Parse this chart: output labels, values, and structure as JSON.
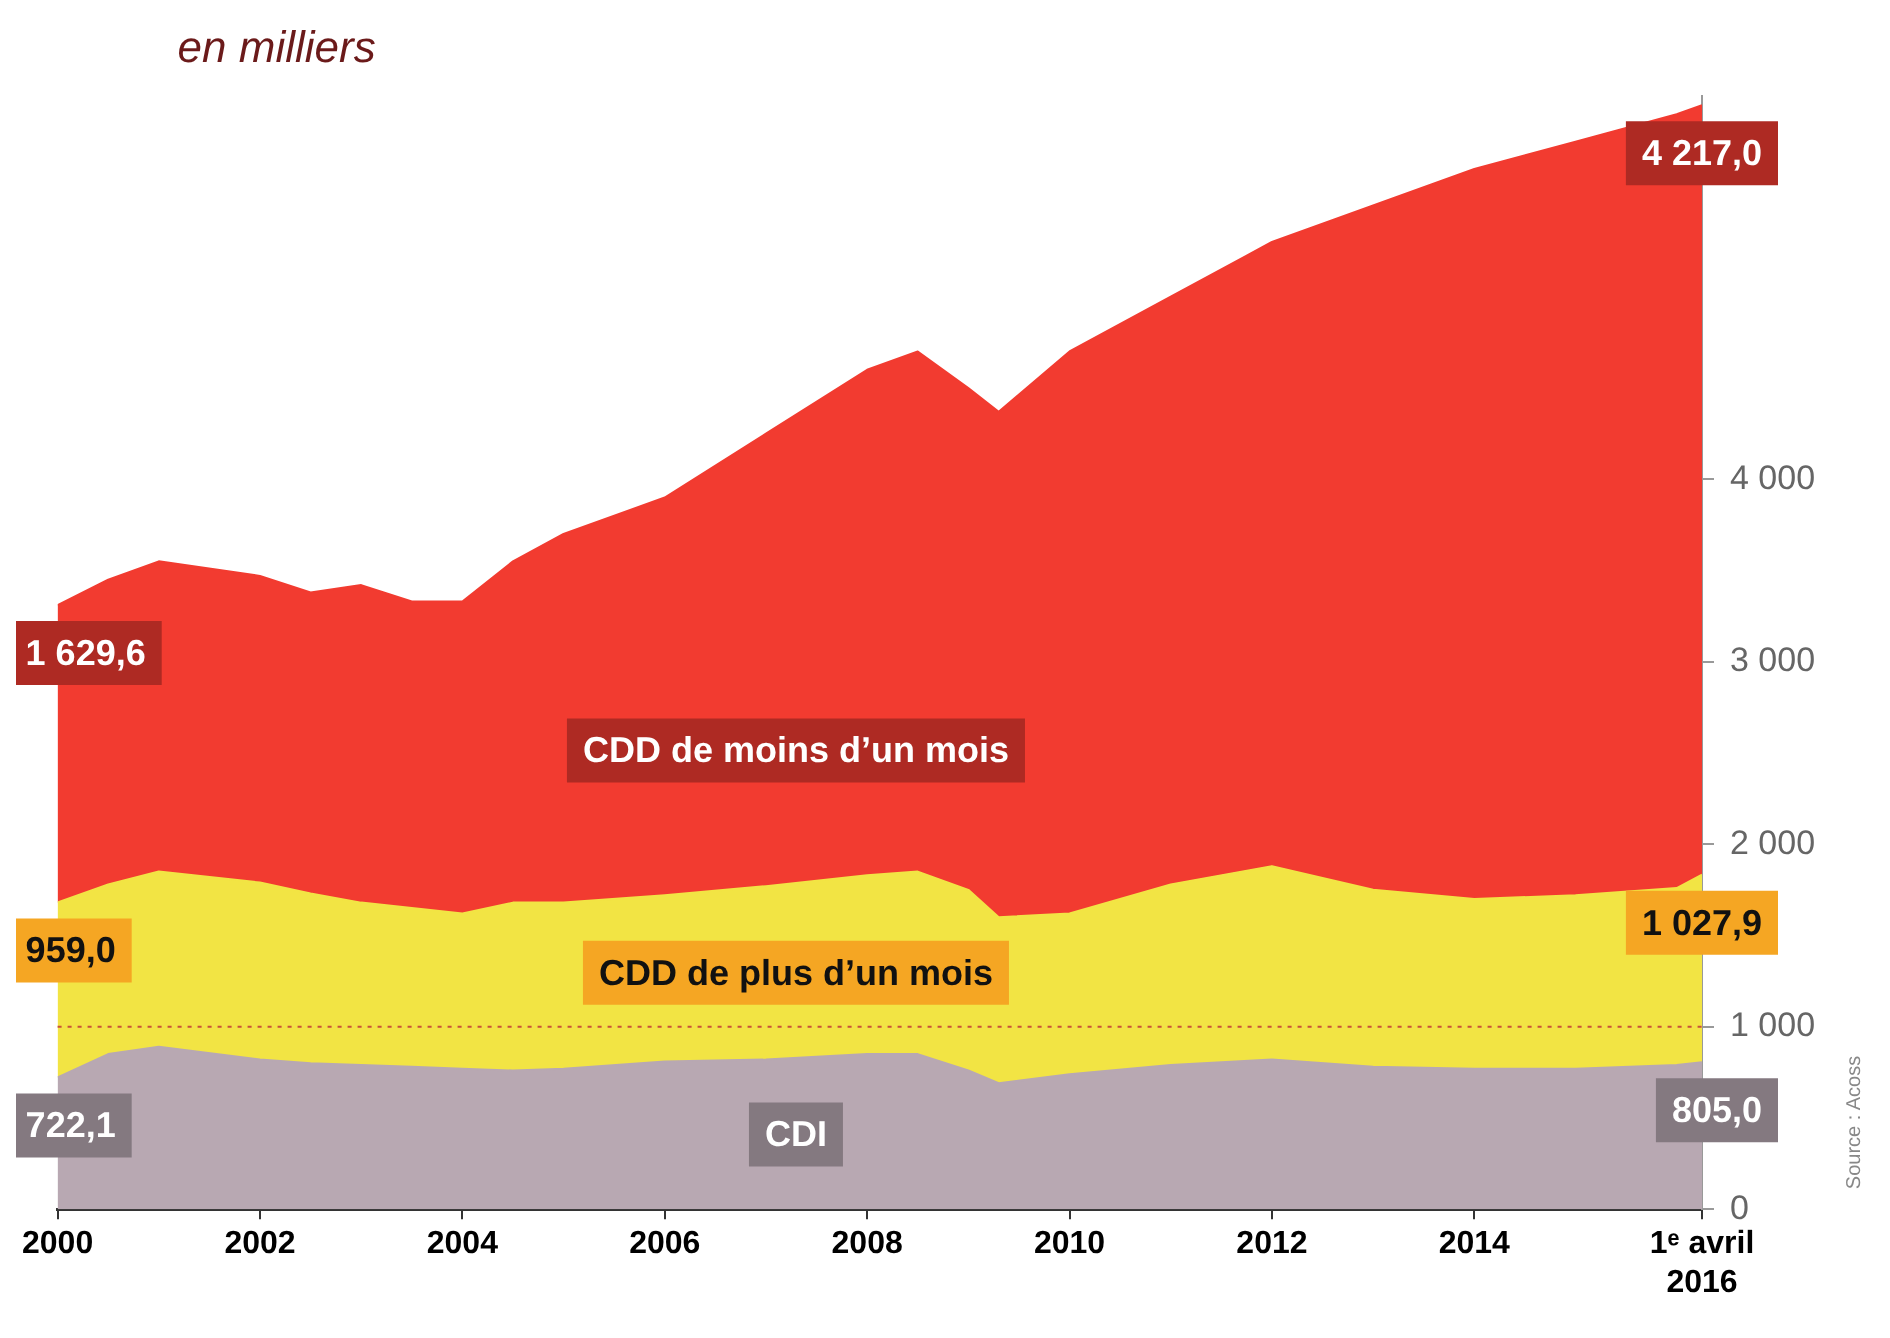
{
  "chart_data": {
    "type": "area",
    "subtitle": "en milliers",
    "stacked": true,
    "grid": false,
    "legend": false,
    "marker": "none",
    "x": [
      2000,
      2000.5,
      2001,
      2002,
      2002.5,
      2003,
      2003.5,
      2004,
      2004.5,
      2005,
      2006,
      2007,
      2008,
      2008.5,
      2009,
      2009.3,
      2010,
      2011,
      2012,
      2013,
      2014,
      2015,
      2016,
      2016.25
    ],
    "series": [
      {
        "name": "CDI",
        "color": "#b8a8b2",
        "values": [
          722.1,
          850,
          890,
          820,
          800,
          790,
          780,
          770,
          760,
          770,
          810,
          820,
          850,
          850,
          760,
          690,
          740,
          790,
          820,
          780,
          770,
          770,
          790,
          805.0
        ],
        "value_labels": [
          "722,1",
          null,
          null,
          null,
          null,
          null,
          null,
          null,
          null,
          null,
          null,
          null,
          null,
          null,
          null,
          null,
          null,
          null,
          null,
          null,
          null,
          null,
          null,
          "805,0"
        ]
      },
      {
        "name": "CDD de plus d’un mois",
        "color": "#f2e444",
        "values": [
          959.0,
          930,
          960,
          970,
          930,
          890,
          870,
          850,
          920,
          910,
          910,
          950,
          980,
          1000,
          990,
          910,
          880,
          990,
          1060,
          970,
          930,
          950,
          970,
          1027.9
        ],
        "value_labels": [
          "959,0",
          null,
          null,
          null,
          null,
          null,
          null,
          null,
          null,
          null,
          null,
          null,
          null,
          null,
          null,
          null,
          null,
          null,
          null,
          null,
          null,
          null,
          null,
          "1 027,9"
        ]
      },
      {
        "name": "CDD de moins d’un mois",
        "color": "#f23b30",
        "values": [
          1629.6,
          1670,
          1700,
          1680,
          1650,
          1740,
          1680,
          1710,
          1870,
          2020,
          2180,
          2480,
          2770,
          2850,
          2750,
          2770,
          3080,
          3220,
          3420,
          3750,
          4000,
          4130,
          4240,
          4217.0
        ],
        "value_labels": [
          "1 629,6",
          null,
          null,
          null,
          null,
          null,
          null,
          null,
          null,
          null,
          null,
          null,
          null,
          null,
          null,
          null,
          null,
          null,
          null,
          null,
          null,
          null,
          null,
          "4 217,0"
        ]
      }
    ],
    "xlim": [
      2000,
      2016.25
    ],
    "xticks": [
      2000,
      2002,
      2004,
      2006,
      2008,
      2010,
      2012,
      2014,
      {
        "value": 2016.25,
        "label": "1ᵉ avril 2016"
      }
    ],
    "ylim": [
      0,
      6100
    ],
    "yticks": [
      0,
      {
        "value": 1000,
        "label": "1 000"
      },
      {
        "value": 2000,
        "label": "2 000"
      },
      {
        "value": 3000,
        "label": "3 000"
      },
      {
        "value": 4000,
        "label": "4 000"
      }
    ],
    "ref_lines": [
      {
        "axis": "y",
        "value": 1000,
        "color": "#c8503a",
        "line_style": "dotted"
      }
    ],
    "annotations": [
      "Source : Acoss"
    ]
  }
}
